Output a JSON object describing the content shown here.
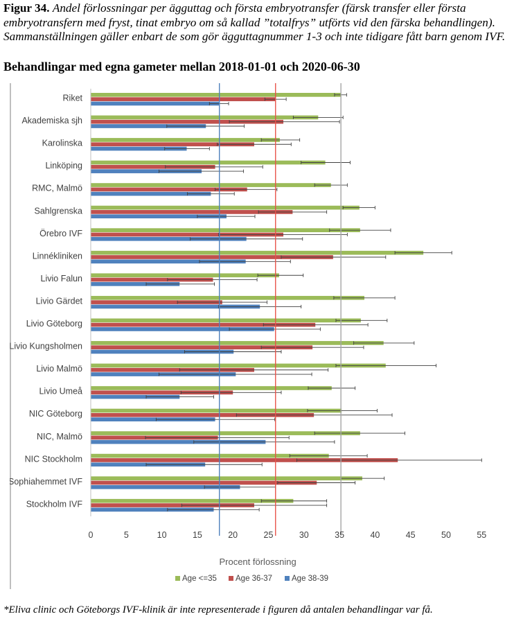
{
  "caption": {
    "label": "Figur 34.",
    "text": "Andel förlossningar per ägguttag och första embryotransfer (färsk transfer eller första embryotransfern med fryst, tinat embryo om så kallad ”totalfrys” utförts vid den färska behandlingen). Sammanställningen gäller enbart de som gör ägguttagnummer 1-3 och inte tidigare fått barn genom IVF."
  },
  "subtitle": "Behandlingar med egna gameter mellan 2018-01-01 och 2020-06-30",
  "footnote": "*Eliva clinic och Göteborgs IVF-klinik är inte representerade i figuren då antalen behandlingar var få.",
  "chart_data": {
    "type": "bar",
    "orientation": "horizontal",
    "categories": [
      "Riket",
      "Akademiska sjh",
      "Karolinska",
      "Linköping",
      "RMC, Malmö",
      "Sahlgrenska",
      "Örebro IVF",
      "Linnékliniken",
      "Livio Falun",
      "Livio Gärdet",
      "Livio Göteborg",
      "Livio Kungsholmen",
      "Livio Malmö",
      "Livio Umeå",
      "NIC Göteborg",
      "NIC, Malmö",
      "NIC Stockholm",
      "Sophiahemmet IVF",
      "Stockholm IVF"
    ],
    "series": [
      {
        "name": "Age <=35",
        "color": "#9BBB59",
        "values": [
          35.2,
          32.0,
          26.6,
          33.0,
          33.8,
          37.8,
          37.9,
          46.8,
          26.5,
          38.5,
          38.0,
          41.2,
          41.5,
          33.9,
          35.3,
          37.9,
          33.5,
          38.2,
          28.5
        ],
        "lower": [
          34.3,
          28.5,
          24.0,
          29.6,
          31.5,
          35.5,
          33.6,
          42.8,
          23.5,
          34.2,
          34.5,
          37.0,
          34.5,
          30.6,
          30.5,
          31.5,
          28.0,
          35.2,
          24.0
        ],
        "upper": [
          36.0,
          35.5,
          29.4,
          36.5,
          36.1,
          40.0,
          42.2,
          50.8,
          29.9,
          42.8,
          41.7,
          45.5,
          48.6,
          37.2,
          40.3,
          44.2,
          38.9,
          41.3,
          33.2
        ]
      },
      {
        "name": "Age 36-37",
        "color": "#C0504D",
        "values": [
          26.0,
          27.1,
          23.0,
          17.5,
          22.0,
          28.4,
          27.1,
          34.1,
          17.2,
          18.5,
          31.6,
          31.2,
          23.0,
          20.0,
          31.4,
          17.9,
          43.2,
          31.8,
          23.0
        ],
        "lower": [
          24.5,
          19.5,
          17.8,
          10.5,
          17.5,
          23.6,
          18.0,
          26.8,
          10.8,
          12.2,
          24.3,
          24.0,
          12.5,
          12.7,
          20.5,
          7.7,
          29.0,
          26.3,
          12.8
        ],
        "upper": [
          27.5,
          35.0,
          28.2,
          24.2,
          26.2,
          33.2,
          36.1,
          41.5,
          23.4,
          24.8,
          39.0,
          38.4,
          33.4,
          26.8,
          42.4,
          27.9,
          55.0,
          37.2,
          33.2
        ]
      },
      {
        "name": "Age 38-39",
        "color": "#4F81BD",
        "values": [
          18.1,
          16.2,
          13.5,
          15.6,
          16.9,
          19.1,
          21.9,
          21.8,
          12.5,
          23.8,
          25.8,
          20.1,
          20.4,
          12.5,
          17.5,
          24.6,
          16.1,
          21.0,
          17.3
        ],
        "lower": [
          16.7,
          10.7,
          10.4,
          9.6,
          13.6,
          15.0,
          14.0,
          15.3,
          7.8,
          18.0,
          19.5,
          13.2,
          9.6,
          7.8,
          9.2,
          14.5,
          7.8,
          16.0,
          10.8
        ],
        "upper": [
          19.4,
          21.6,
          16.7,
          21.5,
          20.2,
          23.1,
          29.8,
          28.1,
          17.4,
          29.6,
          32.3,
          26.8,
          31.1,
          17.3,
          25.9,
          34.3,
          24.1,
          26.0,
          23.7
        ]
      }
    ],
    "reference_lines": [
      {
        "series": "Age <=35",
        "value": 35.2,
        "color": "#A5A5A5"
      },
      {
        "series": "Age 36-37",
        "value": 26.0,
        "color": "#E8524A"
      },
      {
        "series": "Age 38-39",
        "value": 18.1,
        "color": "#4F81BD"
      }
    ],
    "xlabel": "Procent förlossning",
    "xlim": [
      0,
      55
    ],
    "xticks": [
      0,
      5,
      10,
      15,
      20,
      25,
      30,
      35,
      40,
      45,
      50,
      55
    ],
    "grid": false,
    "legend": "bottom"
  }
}
